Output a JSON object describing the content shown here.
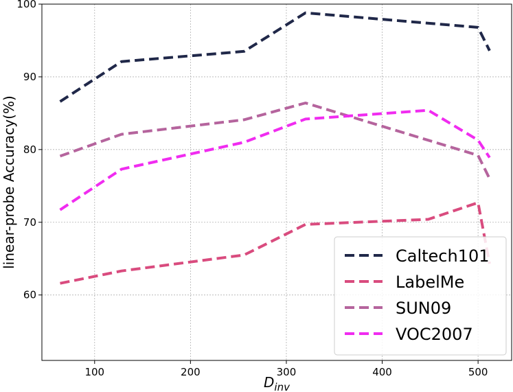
{
  "chart_data": {
    "type": "line",
    "title": "",
    "xlabel": "D",
    "xlabel_sub": "inv",
    "ylabel": "linear-probe Accuracy(%)",
    "xlim": [
      45,
      535
    ],
    "ylim": [
      51,
      100
    ],
    "xticks": [
      100,
      200,
      300,
      400,
      500
    ],
    "yticks": [
      60,
      70,
      80,
      90,
      100
    ],
    "grid": true,
    "legend_position": "bottom-right",
    "line_style": "dashed",
    "series": [
      {
        "name": "Caltech101",
        "color": "#202849",
        "points": [
          [
            64,
            86.6
          ],
          [
            128,
            92.1
          ],
          [
            256,
            93.5
          ],
          [
            320,
            98.8
          ],
          [
            500,
            96.8
          ],
          [
            512,
            93.6
          ]
        ]
      },
      {
        "name": "LabelMe",
        "color": "#d94b7e",
        "points": [
          [
            64,
            61.6
          ],
          [
            128,
            63.3
          ],
          [
            256,
            65.5
          ],
          [
            320,
            69.7
          ],
          [
            448,
            70.4
          ],
          [
            500,
            72.7
          ],
          [
            512,
            64.3
          ]
        ]
      },
      {
        "name": "SUN09",
        "color": "#b5649d",
        "points": [
          [
            64,
            79.1
          ],
          [
            128,
            82.1
          ],
          [
            256,
            84.1
          ],
          [
            320,
            86.4
          ],
          [
            500,
            79.2
          ],
          [
            512,
            76.0
          ]
        ]
      },
      {
        "name": "VOC2007",
        "color": "#f02cf0",
        "points": [
          [
            64,
            71.7
          ],
          [
            128,
            77.3
          ],
          [
            256,
            81.0
          ],
          [
            320,
            84.2
          ],
          [
            448,
            85.4
          ],
          [
            500,
            81.3
          ],
          [
            512,
            78.9
          ]
        ]
      }
    ]
  }
}
